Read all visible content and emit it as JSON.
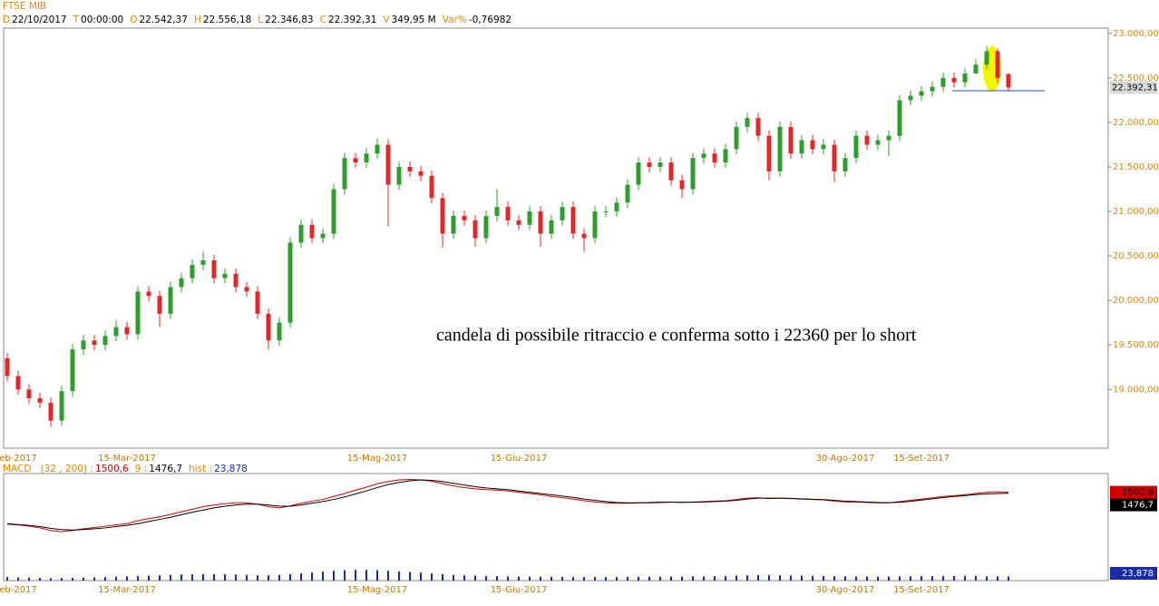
{
  "chart_data": [
    {
      "type": "candlestick",
      "title": "FTSE MIB",
      "info": [
        {
          "key": "D",
          "value": "22/10/2017"
        },
        {
          "key": "T",
          "value": "00:00:00"
        },
        {
          "key": "O",
          "value": "22.542,37"
        },
        {
          "key": "H",
          "value": "22.556,18"
        },
        {
          "key": "L",
          "value": "22.346,83"
        },
        {
          "key": "C",
          "value": "22.392,31"
        },
        {
          "key": "V",
          "value": "349,95 M"
        },
        {
          "key": "Var%",
          "value": "-0,76982"
        }
      ],
      "categories": [
        null,
        "eb-2017",
        null,
        null,
        null,
        null,
        null,
        null,
        null,
        null,
        null,
        "15-Mar-2017",
        null,
        null,
        null,
        null,
        null,
        null,
        null,
        null,
        null,
        null,
        null,
        null,
        null,
        null,
        null,
        null,
        null,
        null,
        null,
        null,
        null,
        null,
        "15-Mag-2017",
        null,
        null,
        null,
        null,
        null,
        null,
        null,
        null,
        null,
        null,
        null,
        null,
        "15-Giu-2017",
        null,
        null,
        null,
        null,
        null,
        null,
        null,
        null,
        null,
        null,
        null,
        null,
        null,
        null,
        null,
        null,
        null,
        null,
        null,
        null,
        null,
        null,
        null,
        null,
        null,
        null,
        null,
        null,
        null,
        "30-Ago-2017",
        null,
        null,
        null,
        null,
        null,
        null,
        "15-Set-2017",
        null,
        null,
        null,
        null,
        null,
        null,
        null,
        null
      ],
      "open": [
        19350,
        19150,
        19000,
        18900,
        18850,
        18650,
        18980,
        19450,
        19550,
        19500,
        19600,
        19700,
        19620,
        20100,
        20050,
        19850,
        20150,
        20250,
        20400,
        20450,
        20250,
        20300,
        20150,
        20100,
        19850,
        19550,
        19750,
        20650,
        20850,
        20700,
        20750,
        21250,
        21600,
        21550,
        21650,
        21750,
        21300,
        21500,
        21450,
        21400,
        21150,
        20750,
        20950,
        20900,
        20700,
        20950,
        21050,
        20900,
        20850,
        21000,
        20750,
        20900,
        21050,
        20750,
        20700,
        21000,
        21000,
        21100,
        21300,
        21550,
        21500,
        21550,
        21350,
        21250,
        21600,
        21650,
        21550,
        21700,
        21950,
        22050,
        21850,
        21450,
        21950,
        21650,
        21800,
        21700,
        21750,
        21450,
        21600,
        21850,
        21750,
        21800,
        21850,
        22250,
        22300,
        22350,
        22400,
        22500,
        22450,
        22550,
        22650,
        22800,
        22542.37
      ],
      "high": [
        19410,
        19210,
        19060,
        18960,
        18910,
        19040,
        19510,
        19610,
        19610,
        19660,
        19780,
        19760,
        20160,
        20160,
        20110,
        20210,
        20310,
        20460,
        20550,
        20510,
        20360,
        20360,
        20210,
        20160,
        19910,
        19810,
        20710,
        20910,
        20910,
        20810,
        21310,
        21660,
        21660,
        21710,
        21820,
        21810,
        21560,
        21560,
        21510,
        21460,
        21210,
        21010,
        21010,
        20960,
        21010,
        21250,
        21110,
        20960,
        21060,
        21060,
        20960,
        21110,
        21110,
        20810,
        21060,
        21060,
        21160,
        21360,
        21610,
        21610,
        21610,
        21610,
        21410,
        21660,
        21710,
        21710,
        21760,
        22010,
        22110,
        22110,
        21910,
        22010,
        22010,
        21860,
        21860,
        21810,
        21810,
        21660,
        21910,
        21910,
        21860,
        21910,
        22310,
        22360,
        22410,
        22460,
        22560,
        22560,
        22610,
        22710,
        22860,
        22830,
        22556.18
      ],
      "low": [
        19090,
        18940,
        18840,
        18790,
        18580,
        18590,
        18920,
        19390,
        19440,
        19440,
        19540,
        19560,
        19560,
        19990,
        19700,
        19790,
        20090,
        20190,
        20340,
        20190,
        20190,
        20090,
        20040,
        19790,
        19450,
        19490,
        19690,
        20590,
        20640,
        20640,
        20690,
        21190,
        21490,
        21490,
        21590,
        20830,
        21240,
        21390,
        21340,
        21090,
        20590,
        20690,
        20840,
        20600,
        20640,
        20890,
        20840,
        20790,
        20790,
        20600,
        20690,
        20840,
        20690,
        20550,
        20640,
        20940,
        20940,
        21040,
        21240,
        21440,
        21440,
        21290,
        21150,
        21190,
        21540,
        21490,
        21490,
        21640,
        21890,
        21790,
        21350,
        21390,
        21590,
        21590,
        21640,
        21640,
        21330,
        21390,
        21540,
        21690,
        21690,
        21620,
        21790,
        22190,
        22240,
        22290,
        22340,
        22390,
        22390,
        22590,
        22590,
        22440,
        22346.83
      ],
      "close": [
        19150,
        19000,
        18900,
        18850,
        18650,
        18980,
        19450,
        19550,
        19500,
        19600,
        19700,
        19620,
        20100,
        20050,
        19850,
        20150,
        20250,
        20400,
        20450,
        20250,
        20300,
        20150,
        20100,
        19850,
        19550,
        19750,
        20650,
        20850,
        20700,
        20750,
        21250,
        21600,
        21550,
        21650,
        21750,
        21300,
        21500,
        21450,
        21400,
        21150,
        20750,
        20950,
        20900,
        20700,
        20950,
        21050,
        20900,
        20850,
        21000,
        20750,
        20900,
        21050,
        20750,
        20700,
        21000,
        21000,
        21100,
        21300,
        21550,
        21500,
        21550,
        21350,
        21250,
        21600,
        21650,
        21550,
        21700,
        21950,
        22050,
        21850,
        21450,
        21950,
        21650,
        21800,
        21700,
        21750,
        21450,
        21600,
        21850,
        21750,
        21800,
        21850,
        22250,
        22300,
        22350,
        22400,
        22500,
        22450,
        22550,
        22650,
        22800,
        22500,
        22392.31
      ],
      "close_label": "22.392,31",
      "up_color": "#2e9e2e",
      "down_color": "#e02828",
      "ylim": [
        18340,
        23060
      ],
      "yticks": [
        {
          "value": 19000,
          "label": "19.000,00"
        },
        {
          "value": 19500,
          "label": "19.500,00"
        },
        {
          "value": 20000,
          "label": "20.000,00"
        },
        {
          "value": 20500,
          "label": "20.500,00"
        },
        {
          "value": 21000,
          "label": "21.000,00"
        },
        {
          "value": 21500,
          "label": "21.500,00"
        },
        {
          "value": 22000,
          "label": "22.000,00"
        },
        {
          "value": 22500,
          "label": "22.500,00"
        },
        {
          "value": 23000,
          "label": "23.000,00"
        }
      ],
      "annotation": "candela di possibile ritraccio e conferma sotto i 22360 per lo short"
    },
    {
      "type": "line",
      "title": "MACD",
      "categories": [
        null,
        "eb-2017",
        null,
        null,
        null,
        null,
        null,
        null,
        null,
        null,
        null,
        "15-Mar-2017",
        null,
        null,
        null,
        null,
        null,
        null,
        null,
        null,
        null,
        null,
        null,
        null,
        null,
        null,
        null,
        null,
        null,
        null,
        null,
        null,
        null,
        null,
        "15-Mag-2017",
        null,
        null,
        null,
        null,
        null,
        null,
        null,
        null,
        null,
        null,
        null,
        null,
        "15-Giu-2017",
        null,
        null,
        null,
        null,
        null,
        null,
        null,
        null,
        null,
        null,
        null,
        null,
        null,
        null,
        null,
        null,
        null,
        null,
        null,
        null,
        null,
        null,
        null,
        null,
        null,
        null,
        null,
        null,
        null,
        "30-Ago-2017",
        null,
        null,
        null,
        null,
        null,
        null,
        "15-Set-2017",
        null,
        null,
        null,
        null,
        null,
        null,
        null,
        null
      ],
      "ylim": [
        -580,
        1940
      ],
      "y2lim": [
        0,
        600
      ],
      "series": [
        {
          "name": "(32 , 200) :",
          "color": "#d00000",
          "last_label": "1500,6",
          "values": [
            750,
            730,
            700,
            660,
            600,
            570,
            600,
            640,
            670,
            700,
            730,
            760,
            830,
            880,
            920,
            980,
            1040,
            1100,
            1160,
            1200,
            1230,
            1250,
            1250,
            1220,
            1160,
            1130,
            1180,
            1240,
            1290,
            1330,
            1400,
            1470,
            1550,
            1620,
            1700,
            1750,
            1790,
            1800,
            1790,
            1760,
            1700,
            1650,
            1610,
            1580,
            1560,
            1550,
            1530,
            1500,
            1470,
            1440,
            1400,
            1370,
            1340,
            1300,
            1270,
            1250,
            1240,
            1240,
            1250,
            1260,
            1270,
            1270,
            1260,
            1270,
            1280,
            1290,
            1300,
            1330,
            1360,
            1370,
            1350,
            1360,
            1350,
            1340,
            1330,
            1320,
            1290,
            1270,
            1270,
            1260,
            1250,
            1250,
            1280,
            1310,
            1340,
            1370,
            1400,
            1420,
            1440,
            1470,
            1500,
            1510,
            1500.6
          ]
        },
        {
          "name": "9 :",
          "color": "#000000",
          "last_label": "1476,7",
          "values": [
            760,
            740,
            720,
            690,
            650,
            620,
            610,
            620,
            640,
            660,
            690,
            720,
            760,
            810,
            860,
            910,
            970,
            1030,
            1080,
            1130,
            1170,
            1200,
            1220,
            1220,
            1200,
            1170,
            1170,
            1200,
            1240,
            1280,
            1330,
            1390,
            1460,
            1530,
            1610,
            1680,
            1730,
            1770,
            1790,
            1780,
            1750,
            1710,
            1670,
            1630,
            1600,
            1580,
            1560,
            1530,
            1500,
            1470,
            1440,
            1410,
            1380,
            1340,
            1310,
            1280,
            1260,
            1250,
            1250,
            1250,
            1260,
            1265,
            1265,
            1265,
            1270,
            1280,
            1290,
            1310,
            1340,
            1360,
            1360,
            1360,
            1355,
            1345,
            1335,
            1325,
            1310,
            1290,
            1280,
            1270,
            1260,
            1255,
            1265,
            1285,
            1315,
            1345,
            1375,
            1400,
            1420,
            1445,
            1460,
            1470,
            1476.7
          ]
        },
        {
          "name": "hist :",
          "color": "#1a2aa8",
          "axis": "y2",
          "last_label": "23,878",
          "values": [
            20,
            18,
            16,
            15,
            14,
            14,
            15,
            16,
            18,
            20,
            22,
            24,
            26,
            28,
            30,
            32,
            34,
            35,
            36,
            36,
            35,
            34,
            32,
            30,
            30,
            32,
            36,
            40,
            45,
            50,
            55,
            58,
            60,
            60,
            58,
            55,
            52,
            48,
            45,
            40,
            36,
            32,
            30,
            28,
            26,
            25,
            24,
            23,
            22,
            22,
            21,
            21,
            20,
            20,
            20,
            20,
            20,
            21,
            21,
            22,
            22,
            23,
            23,
            24,
            24,
            25,
            26,
            28,
            30,
            31,
            31,
            30,
            29,
            28,
            27,
            26,
            25,
            24,
            24,
            23,
            23,
            23,
            24,
            24,
            25,
            25,
            26,
            26,
            27,
            27,
            24,
            24,
            23.878
          ]
        }
      ]
    }
  ]
}
